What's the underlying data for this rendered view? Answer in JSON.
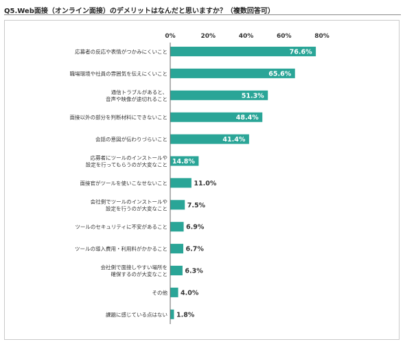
{
  "title": "Q5.Web面接（オンライン面接）のデメリットはなんだと思いますか？（複数回答可）",
  "colors": {
    "bar": "#2aa597",
    "axis": "#666666",
    "frame": "#c9c9c9"
  },
  "chart_data": {
    "type": "bar",
    "orientation": "horizontal",
    "xlim": [
      0,
      80
    ],
    "ticks": [
      0,
      20,
      40,
      60,
      80
    ],
    "tick_labels": [
      "0%",
      "20%",
      "40%",
      "60%",
      "80%"
    ],
    "categories": [
      [
        "応募者の反応や表情がつかみにくいこと"
      ],
      [
        "職場環境や社員の雰囲気を伝えにくいこと"
      ],
      [
        "通信トラブルがあると、",
        "音声や映像が途切れること"
      ],
      [
        "面接以外の部分を判断材料にできないこと"
      ],
      [
        "会話の意図が伝わりづらいこと"
      ],
      [
        "応募者にツールのインストールや",
        "設定を行ってもらうのが大変なこと"
      ],
      [
        "面接官がツールを使いこなせないこと"
      ],
      [
        "会社側でツールのインストールや",
        "設定を行うのが大変なこと"
      ],
      [
        "ツールのセキュリティに不安があること"
      ],
      [
        "ツールの導入費用・利用料がかかること"
      ],
      [
        "会社側で面接しやすい場所を",
        "確保するのが大変なこと"
      ],
      [
        "その他"
      ],
      [
        "課題に感じている点はない"
      ]
    ],
    "values": [
      76.6,
      65.6,
      51.3,
      48.4,
      41.4,
      14.8,
      11.0,
      7.5,
      6.9,
      6.7,
      6.3,
      4.0,
      1.8
    ],
    "value_labels": [
      "76.6%",
      "65.6%",
      "51.3%",
      "48.4%",
      "41.4%",
      "14.8%",
      "11.0%",
      "7.5%",
      "6.9%",
      "6.7%",
      "6.3%",
      "4.0%",
      "1.8%"
    ],
    "grid": false
  }
}
